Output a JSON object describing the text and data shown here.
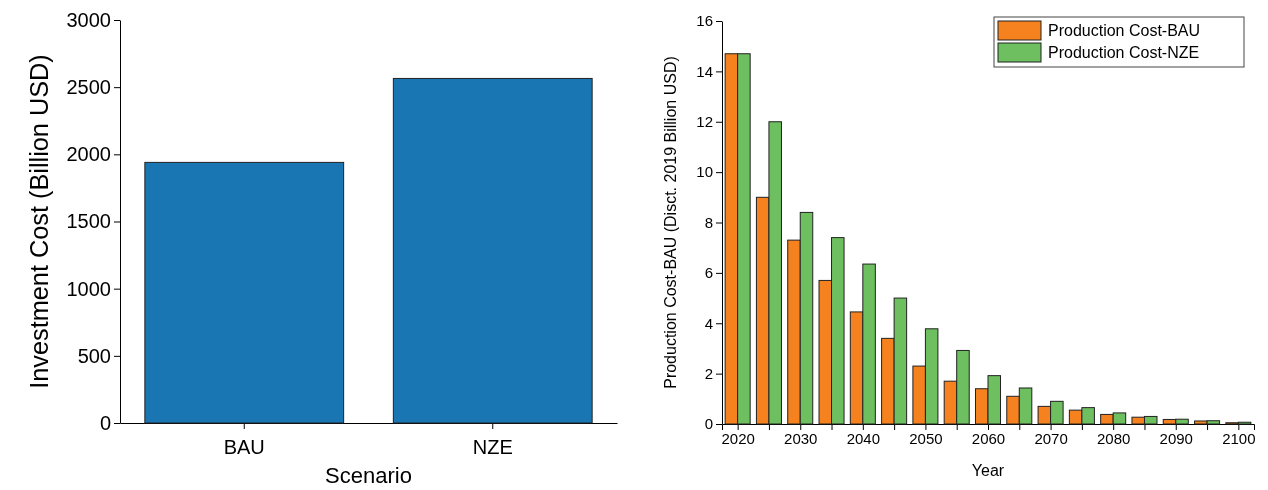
{
  "chart_data": [
    {
      "type": "bar",
      "xlabel": "Scenario",
      "ylabel": "Investment Cost (Billion USD)",
      "categories": [
        "BAU",
        "NZE"
      ],
      "series": [
        {
          "color": "#1a75b3",
          "values": [
            1940,
            2565
          ]
        }
      ],
      "ylim": [
        0,
        3000
      ],
      "yticks": [
        0,
        500,
        1000,
        1500,
        2000,
        2500,
        3000
      ],
      "grid": false,
      "legend": false
    },
    {
      "type": "bar",
      "xlabel": "Year",
      "ylabel": "Production Cost-BAU (Disct. 2019 Billion USD)",
      "x": [
        2020,
        2025,
        2030,
        2035,
        2040,
        2045,
        2050,
        2055,
        2060,
        2065,
        2070,
        2075,
        2080,
        2085,
        2090,
        2095,
        2100
      ],
      "series": [
        {
          "name": "Production Cost-BAU",
          "color": "#f5821f",
          "values": [
            14.7,
            9.0,
            7.3,
            5.7,
            4.45,
            3.4,
            2.3,
            1.7,
            1.4,
            1.1,
            0.7,
            0.55,
            0.38,
            0.27,
            0.18,
            0.12,
            0.05
          ]
        },
        {
          "name": "Production Cost-NZE",
          "color": "#6dbf5f",
          "values": [
            14.7,
            12.0,
            8.4,
            7.4,
            6.35,
            5.0,
            3.78,
            2.92,
            1.92,
            1.43,
            0.9,
            0.65,
            0.44,
            0.3,
            0.19,
            0.13,
            0.07
          ]
        }
      ],
      "xlim": [
        2017.5,
        2102.5
      ],
      "xticks": [
        2020,
        {
          "value": 2025,
          "label": null
        },
        2030,
        {
          "value": 2035,
          "label": null
        },
        2040,
        {
          "value": 2045,
          "label": null
        },
        2050,
        {
          "value": 2055,
          "label": null
        },
        2060,
        {
          "value": 2065,
          "label": null
        },
        2070,
        {
          "value": 2075,
          "label": null
        },
        2080,
        {
          "value": 2085,
          "label": null
        },
        2090,
        {
          "value": 2095,
          "label": null
        },
        2100
      ],
      "ylim": [
        0,
        16
      ],
      "yticks": [
        0,
        2,
        4,
        6,
        8,
        10,
        12,
        14,
        16
      ],
      "grid": false,
      "legend": "top right"
    }
  ]
}
